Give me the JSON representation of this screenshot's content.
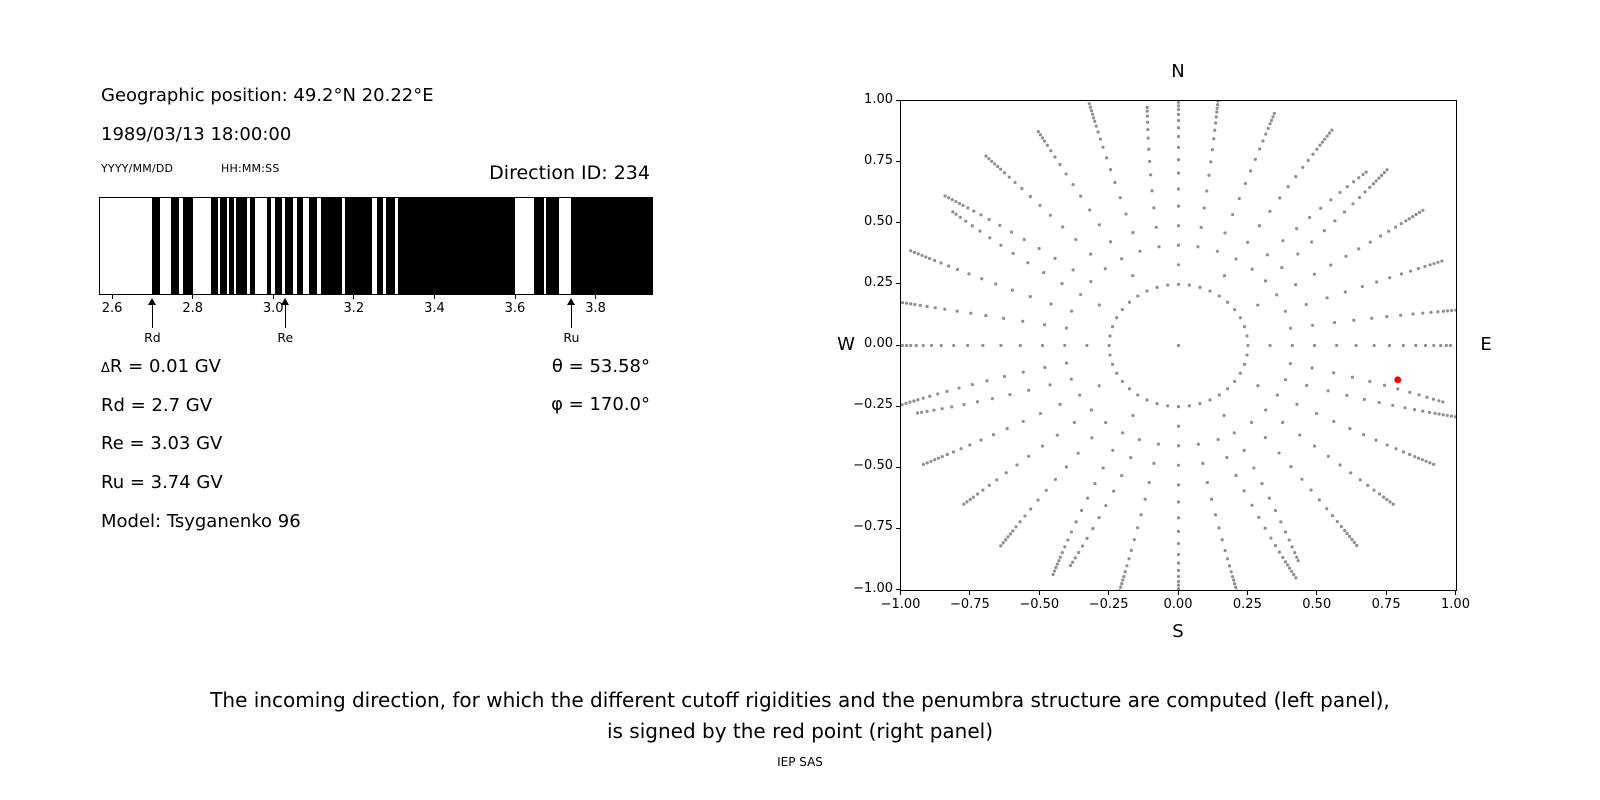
{
  "left_panel": {
    "geo_position": "Geographic position: 49.2°N 20.22°E",
    "datetime": "1989/03/13 18:00:00",
    "date_format_label": "YYYY/MM/DD",
    "time_format_label": "HH:MM:SS",
    "direction_id": "Direction ID: 234",
    "values": {
      "delta_r_symbol": "Δ",
      "delta_r_text": "R = 0.01 GV",
      "rd": "Rd = 2.7 GV",
      "re": "Re = 3.03 GV",
      "ru": "Ru = 3.74 GV",
      "model": "Model: Tsyganenko 96",
      "theta": "θ = 53.58°",
      "phi": "φ = 170.0°"
    }
  },
  "caption": {
    "line1": "The incoming direction, for which the different cutoff rigidities and the penumbra structure are computed (left panel),",
    "line2": "is signed by the red point (right panel)",
    "credit": "IEP SAS"
  },
  "chart_data": [
    {
      "type": "bar",
      "subtype": "penumbra-barcode",
      "description": "Penumbra structure between lower (Rd) and upper (Ru) cutoff rigidity; black bands = allowed rigidity intervals, white = forbidden",
      "xlim": [
        2.57,
        3.94
      ],
      "x_tick_values": [
        2.6,
        2.8,
        3.0,
        3.2,
        3.4,
        3.6,
        3.8
      ],
      "x_tick_labels": [
        "2.6",
        "2.8",
        "3.0",
        "3.2",
        "3.4",
        "3.6",
        "3.8"
      ],
      "band_color": "#000000",
      "background_color": "#ffffff",
      "black_intervals_gv": [
        [
          2.7,
          2.72
        ],
        [
          2.745,
          2.765
        ],
        [
          2.775,
          2.8
        ],
        [
          2.845,
          2.862
        ],
        [
          2.868,
          2.884
        ],
        [
          2.89,
          2.902
        ],
        [
          2.908,
          2.935
        ],
        [
          2.942,
          2.955
        ],
        [
          2.985,
          2.995
        ],
        [
          3.005,
          3.022
        ],
        [
          3.03,
          3.048
        ],
        [
          3.058,
          3.075
        ],
        [
          3.088,
          3.108
        ],
        [
          3.118,
          3.17
        ],
        [
          3.178,
          3.245
        ],
        [
          3.258,
          3.272
        ],
        [
          3.28,
          3.302
        ],
        [
          3.31,
          3.6
        ],
        [
          3.648,
          3.672
        ],
        [
          3.678,
          3.708
        ],
        [
          3.74,
          3.94
        ]
      ],
      "markers": [
        {
          "label": "Rd",
          "x": 2.7
        },
        {
          "label": "Re",
          "x": 3.03
        },
        {
          "label": "Ru",
          "x": 3.74
        }
      ]
    },
    {
      "type": "scatter",
      "subtype": "incoming-direction-sky-map",
      "xlim": [
        -1.0,
        1.0
      ],
      "ylim": [
        -1.0,
        1.0
      ],
      "x_tick_values": [
        -1.0,
        -0.75,
        -0.5,
        -0.25,
        0.0,
        0.25,
        0.5,
        0.75,
        1.0
      ],
      "x_tick_labels": [
        "−1.00",
        "−0.75",
        "−0.50",
        "−0.25",
        "0.00",
        "0.25",
        "0.50",
        "0.75",
        "1.00"
      ],
      "y_tick_values": [
        -1.0,
        -0.75,
        -0.5,
        -0.25,
        0.0,
        0.25,
        0.5,
        0.75,
        1.0
      ],
      "y_tick_labels": [
        "−1.00",
        "−0.75",
        "−0.50",
        "−0.25",
        "0.00",
        "0.25",
        "0.50",
        "0.75",
        "1.00"
      ],
      "compass": {
        "north": "N",
        "south": "S",
        "west": "W",
        "east": "E"
      },
      "gray_dots": {
        "color": "#8f8f8f",
        "dot_radius_px": 1.6,
        "center_dot": true,
        "inner_ring": {
          "radius": 0.25,
          "count": 40
        },
        "spokes": {
          "count": 36,
          "start_angle_deg": 0,
          "step_deg": 10,
          "radii": [
            0.33,
            0.41,
            0.49,
            0.57,
            0.64,
            0.705,
            0.76,
            0.81,
            0.855,
            0.89,
            0.92,
            0.945,
            0.965,
            0.98,
            0.995,
            1.01,
            1.025,
            1.04
          ]
        }
      },
      "red_point": {
        "x": 0.79,
        "y": -0.14,
        "color": "#ff0000",
        "dot_radius_px": 3.4
      }
    }
  ]
}
